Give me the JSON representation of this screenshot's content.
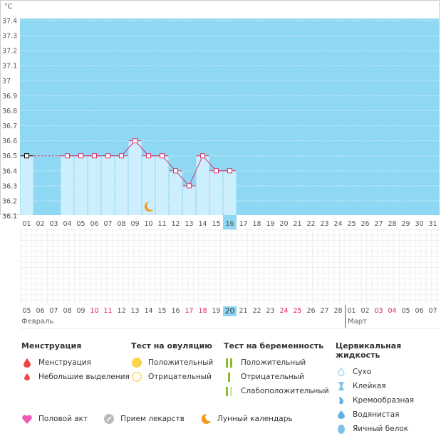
{
  "unit": "°C",
  "y_ticks": [
    "37.4",
    "37.3",
    "37.2",
    "37.1",
    "37",
    "36.9",
    "36.8",
    "36.7",
    "36.6",
    "36.5",
    "36.4",
    "36.3",
    "36.2",
    "36.1"
  ],
  "cycle_days": [
    "01",
    "02",
    "03",
    "04",
    "05",
    "06",
    "07",
    "08",
    "09",
    "10",
    "11",
    "12",
    "13",
    "14",
    "15",
    "16",
    "17",
    "18",
    "19",
    "20",
    "21",
    "22",
    "23",
    "24",
    "25",
    "26",
    "27",
    "28",
    "29",
    "30",
    "31"
  ],
  "current_cycle_day": "16",
  "temperatures": {
    "01": 36.5,
    "04": 36.5,
    "05": 36.5,
    "06": 36.5,
    "07": 36.5,
    "08": 36.5,
    "09": 36.6,
    "10": 36.5,
    "11": 36.5,
    "12": 36.4,
    "13": 36.3,
    "14": 36.5,
    "15": 36.4,
    "16": 36.4
  },
  "moon_day": "10",
  "dates": [
    "05",
    "06",
    "07",
    "08",
    "09",
    "10",
    "11",
    "12",
    "13",
    "14",
    "15",
    "16",
    "17",
    "18",
    "19",
    "20",
    "21",
    "22",
    "23",
    "24",
    "25",
    "26",
    "27",
    "28",
    "01",
    "02",
    "03",
    "04",
    "05",
    "06",
    "07"
  ],
  "weekend_dates_idx": [
    5,
    6,
    12,
    13,
    19,
    20,
    26,
    27
  ],
  "today_idx": 15,
  "months": {
    "feb": "Февраль",
    "mar": "Март"
  },
  "colors": {
    "chart_bg": "#8fd8f3",
    "bar": "#cdeefc",
    "line": "#d6336c",
    "weekend": "#e0245e",
    "today": "#8fd8f3"
  },
  "legend": {
    "menstruation": {
      "title": "Менструация",
      "items": [
        "Менструация",
        "Небольшие выделения"
      ]
    },
    "ovulation": {
      "title": "Тест на овуляцию",
      "items": [
        "Положительный",
        "Отрицательный"
      ]
    },
    "pregnancy": {
      "title": "Тест на беременность",
      "items": [
        "Положительный",
        "Отрицательный",
        "Слабоположительный"
      ]
    },
    "cervical": {
      "title": "Цервикальная жидкость",
      "items": [
        "Сухо",
        "Клейкая",
        "Кремообразная",
        "Водянистая",
        "Яичный белок"
      ]
    },
    "other": [
      "Половой акт",
      "Прием лекарств",
      "Лунный календарь"
    ]
  }
}
